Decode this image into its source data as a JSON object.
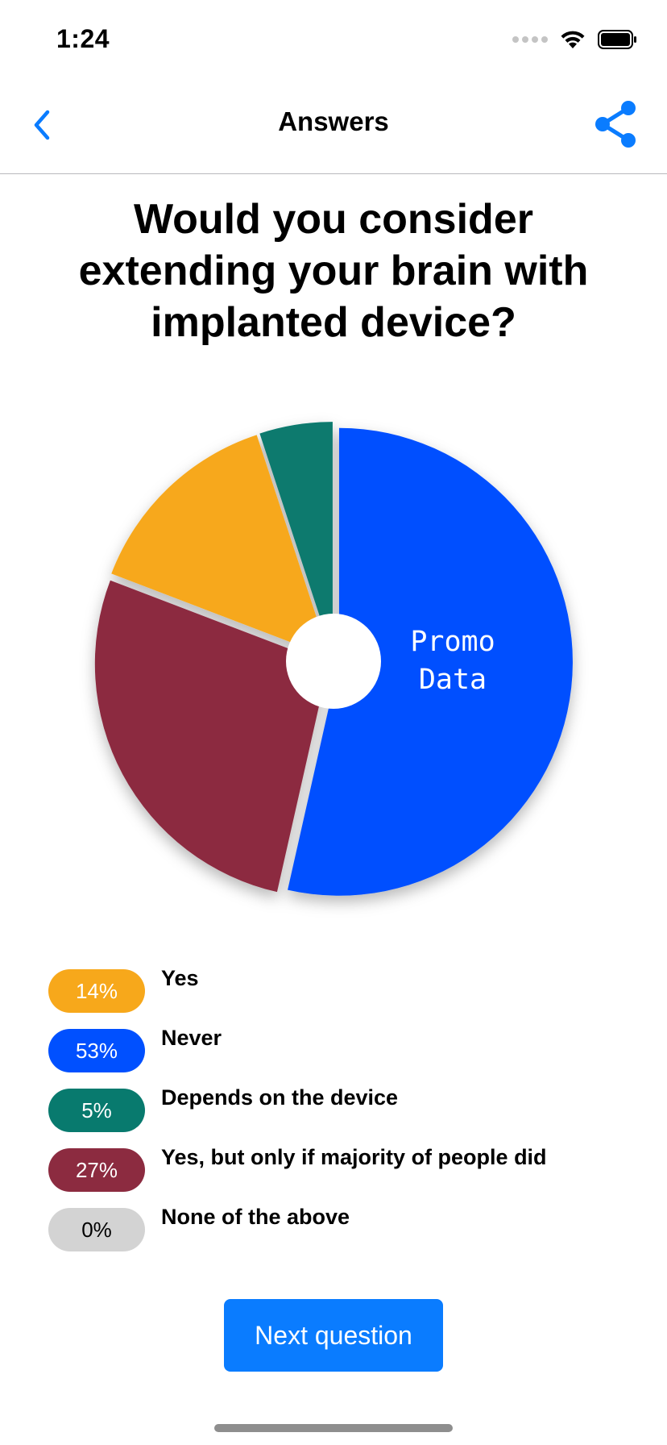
{
  "status_bar": {
    "time": "1:24"
  },
  "nav": {
    "title": "Answers",
    "back_icon": "chevron-left-icon",
    "share_icon": "share-icon",
    "accent": "#0a7cff"
  },
  "question": "Would you consider extending your brain with implanted device?",
  "chart_data": {
    "type": "pie",
    "donut": true,
    "center_label": [
      "Promo",
      "Data"
    ],
    "slices": [
      {
        "label": "Never",
        "value": 53,
        "color": "#0050ff"
      },
      {
        "label": "Yes, but only if majority of people did",
        "value": 27,
        "color": "#8c2b40"
      },
      {
        "label": "Yes",
        "value": 14,
        "color": "#f7a81b"
      },
      {
        "label": "Depends on the device",
        "value": 5,
        "color": "#087a6e"
      },
      {
        "label": "None of the above",
        "value": 0,
        "color": "#d3d3d3"
      }
    ]
  },
  "legend": [
    {
      "percent": "14%",
      "label": "Yes",
      "color": "#f7a81b",
      "text_color": "#ffffff"
    },
    {
      "percent": "53%",
      "label": "Never",
      "color": "#0050ff",
      "text_color": "#ffffff"
    },
    {
      "percent": "5%",
      "label": "Depends on the device",
      "color": "#087a6e",
      "text_color": "#ffffff"
    },
    {
      "percent": "27%",
      "label": "Yes, but only if majority of people did",
      "color": "#8c2b40",
      "text_color": "#ffffff"
    },
    {
      "percent": "0%",
      "label": "None of the above",
      "color": "#d3d3d3",
      "text_color": "#000000"
    }
  ],
  "next_button": {
    "label": "Next question"
  }
}
